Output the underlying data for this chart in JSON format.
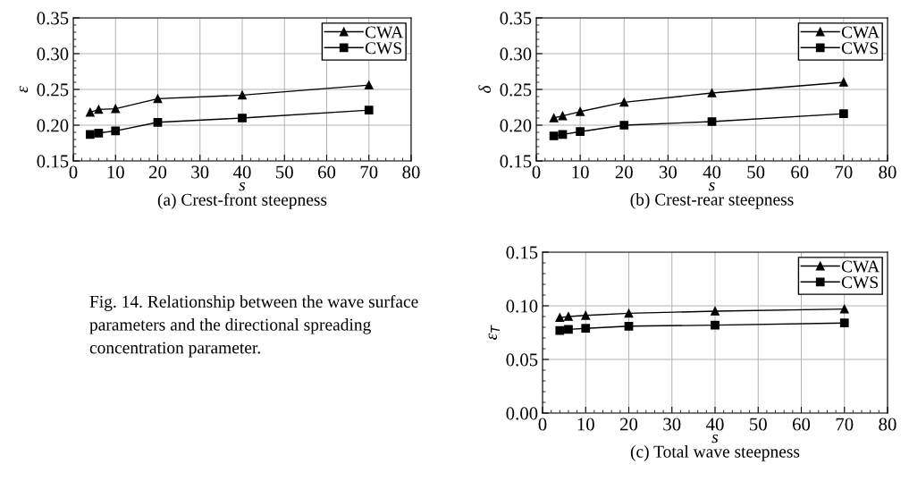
{
  "chart_data": [
    {
      "type": "line",
      "title": "(a) Crest-front steepness",
      "xlabel": "s",
      "ylabel": "ε",
      "x": [
        4,
        6,
        10,
        20,
        40,
        70
      ],
      "series": [
        {
          "name": "CWA",
          "color": "#000000",
          "marker": "triangle",
          "values": [
            0.218,
            0.222,
            0.223,
            0.237,
            0.242,
            0.256
          ]
        },
        {
          "name": "CWS",
          "color": "#000000",
          "marker": "square",
          "values": [
            0.187,
            0.189,
            0.192,
            0.204,
            0.21,
            0.221
          ]
        }
      ],
      "xlim": [
        0,
        80
      ],
      "xticks": [
        0,
        10,
        20,
        30,
        40,
        50,
        60,
        70,
        80
      ],
      "ylim": [
        0.15,
        0.35
      ],
      "yticks": [
        {
          "value": 0.15,
          "label": "0.15"
        },
        {
          "value": 0.2,
          "label": "0.20"
        },
        {
          "value": 0.25,
          "label": "0.25"
        },
        {
          "value": 0.3,
          "label": "0.30"
        },
        {
          "value": 0.35,
          "label": "0.35"
        }
      ],
      "grid": true,
      "legend": "top right",
      "line_style": "solid"
    },
    {
      "type": "line",
      "title": "(b) Crest-rear steepness",
      "xlabel": "s",
      "ylabel": "δ",
      "x": [
        4,
        6,
        10,
        20,
        40,
        70
      ],
      "series": [
        {
          "name": "CWA",
          "color": "#000000",
          "marker": "triangle",
          "values": [
            0.21,
            0.213,
            0.219,
            0.232,
            0.245,
            0.26
          ]
        },
        {
          "name": "CWS",
          "color": "#000000",
          "marker": "square",
          "values": [
            0.185,
            0.187,
            0.191,
            0.2,
            0.205,
            0.216
          ]
        }
      ],
      "xlim": [
        0,
        80
      ],
      "xticks": [
        0,
        10,
        20,
        30,
        40,
        50,
        60,
        70,
        80
      ],
      "ylim": [
        0.15,
        0.35
      ],
      "yticks": [
        {
          "value": 0.15,
          "label": "0.15"
        },
        {
          "value": 0.2,
          "label": "0.20"
        },
        {
          "value": 0.25,
          "label": "0.25"
        },
        {
          "value": 0.3,
          "label": "0.30"
        },
        {
          "value": 0.35,
          "label": "0.35"
        }
      ],
      "grid": true,
      "legend": "top right",
      "line_style": "solid"
    },
    {
      "type": "line",
      "title": "(c) Total wave steepness",
      "xlabel": "s",
      "ylabel": "ε$_{T}$",
      "x": [
        4,
        6,
        10,
        20,
        40,
        70
      ],
      "series": [
        {
          "name": "CWA",
          "color": "#000000",
          "marker": "triangle",
          "values": [
            0.089,
            0.09,
            0.091,
            0.093,
            0.095,
            0.097
          ]
        },
        {
          "name": "CWS",
          "color": "#000000",
          "marker": "square",
          "values": [
            0.077,
            0.078,
            0.079,
            0.081,
            0.082,
            0.084
          ]
        }
      ],
      "xlim": [
        0,
        80
      ],
      "xticks": [
        0,
        10,
        20,
        30,
        40,
        50,
        60,
        70,
        80
      ],
      "ylim": [
        0.0,
        0.15
      ],
      "yticks": [
        {
          "value": 0.0,
          "label": "0.00"
        },
        {
          "value": 0.05,
          "label": "0.05"
        },
        {
          "value": 0.1,
          "label": "0.10"
        },
        {
          "value": 0.15,
          "label": "0.15"
        }
      ],
      "grid": true,
      "legend": "top right",
      "line_style": "solid",
      "annotations": [
        "Fig. 14. Relationship between the wave surface parameters and the directional spreading concentration parameter."
      ]
    }
  ]
}
